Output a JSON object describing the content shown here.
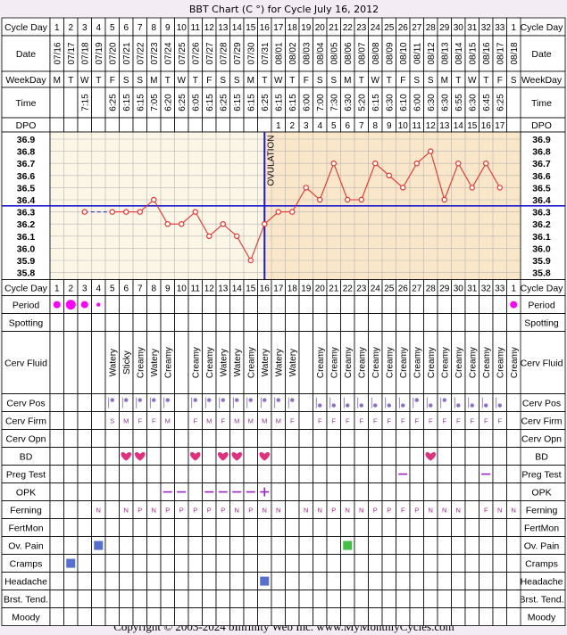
{
  "title": "BBT Chart (C °) for Cycle July 16, 2012",
  "footer": "Copyright © 2003-2024 bInfinity Web Inc.     www.MyMonthlyCycles.com",
  "labels": {
    "cycle_day": "Cycle Day",
    "date": "Date",
    "weekday": "WeekDay",
    "time": "Time",
    "dpo": "DPO",
    "ovulation": "OVULATION"
  },
  "colors": {
    "period": "#ff00ff",
    "curve": "#e8302f",
    "coverline": "#1a1acc",
    "preov_bg": "#fbf6e6",
    "postov_bg": "#fae6c8",
    "heart": "#e0307e",
    "opk": "#9922cc",
    "ferning": "#b0208a",
    "blue_square": "#5570d0",
    "green_square": "#44c044"
  },
  "chart_data": {
    "type": "line",
    "title": "BBT Chart (C °) for Cycle July 16, 2012",
    "ylim": [
      35.8,
      36.9
    ],
    "y_ticks": [
      "36.9",
      "36.8",
      "36.7",
      "36.6",
      "36.5",
      "36.4",
      "36.3",
      "36.2",
      "36.1",
      "36.0",
      "35.9",
      "35.8"
    ],
    "coverline": 36.35,
    "ovulation_day": 16,
    "cycle_days": [
      "1",
      "2",
      "3",
      "4",
      "5",
      "6",
      "7",
      "8",
      "9",
      "10",
      "11",
      "12",
      "13",
      "14",
      "15",
      "16",
      "17",
      "18",
      "19",
      "20",
      "21",
      "22",
      "23",
      "24",
      "25",
      "26",
      "27",
      "28",
      "29",
      "30",
      "31",
      "32",
      "33",
      "1"
    ],
    "dates": [
      "07/16",
      "07/17",
      "07/18",
      "07/19",
      "07/20",
      "07/21",
      "07/22",
      "07/23",
      "07/24",
      "07/25",
      "07/26",
      "07/27",
      "07/28",
      "07/29",
      "07/30",
      "07/31",
      "08/01",
      "08/02",
      "08/03",
      "08/04",
      "08/05",
      "08/06",
      "08/07",
      "08/08",
      "08/09",
      "08/10",
      "08/11",
      "08/12",
      "08/13",
      "08/14",
      "08/15",
      "08/16",
      "08/17",
      "08/18"
    ],
    "weekdays": [
      "M",
      "T",
      "W",
      "T",
      "F",
      "S",
      "S",
      "M",
      "T",
      "W",
      "T",
      "F",
      "S",
      "S",
      "M",
      "T",
      "W",
      "T",
      "F",
      "S",
      "S",
      "M",
      "T",
      "W",
      "T",
      "F",
      "S",
      "S",
      "M",
      "T",
      "W",
      "T",
      "F",
      "S"
    ],
    "times": [
      "",
      "",
      "7:15",
      "",
      "6:25",
      "6:15",
      "6:15",
      "7:05",
      "6:20",
      "6:25",
      "6:05",
      "6:15",
      "6:25",
      "6:15",
      "6:15",
      "6:25",
      "6:15",
      "6:15",
      "6:00",
      "7:00",
      "7:30",
      "6:30",
      "5:20",
      "6:15",
      "6:30",
      "6:10",
      "6:00",
      "6:30",
      "6:30",
      "6:55",
      "6:30",
      "6:45",
      "6:25",
      ""
    ],
    "dpo": [
      "",
      "",
      "",
      "",
      "",
      "",
      "",
      "",
      "",
      "",
      "",
      "",
      "",
      "",
      "",
      "",
      "1",
      "2",
      "3",
      "4",
      "5",
      "6",
      "7",
      "8",
      "9",
      "10",
      "11",
      "12",
      "13",
      "14",
      "15",
      "16",
      "17",
      ""
    ],
    "temps": [
      null,
      null,
      36.3,
      null,
      36.3,
      36.3,
      36.3,
      36.4,
      36.2,
      36.2,
      36.3,
      36.1,
      36.2,
      36.1,
      35.9,
      36.2,
      36.3,
      36.3,
      36.5,
      36.4,
      36.7,
      36.4,
      36.4,
      36.7,
      36.6,
      36.5,
      36.7,
      36.8,
      36.4,
      36.7,
      36.5,
      36.7,
      36.5,
      null
    ],
    "dashed_segments": [
      [
        3,
        5
      ]
    ]
  },
  "rows": [
    {
      "label": "Cycle Day",
      "type": "cycleday"
    },
    {
      "label": "Period",
      "type": "period",
      "values": {
        "1": "m",
        "2": "l",
        "3": "m",
        "4": "s",
        "34": "m"
      }
    },
    {
      "label": "Spotting",
      "type": "empty"
    },
    {
      "label": "Cerv Fluid",
      "type": "vtext",
      "values": {
        "5": "Watery",
        "6": "Sticky",
        "7": "Creamy",
        "8": "Watery",
        "9": "Creamy",
        "11": "Creamy",
        "12": "Creamy",
        "13": "Watery",
        "14": "Watery",
        "15": "Creamy",
        "16": "Watery",
        "17": "Watery",
        "18": "Watery",
        "20": "Creamy",
        "21": "Creamy",
        "22": "Creamy",
        "23": "Creamy",
        "24": "Creamy",
        "25": "Creamy",
        "26": "Creamy",
        "27": "Creamy",
        "28": "Creamy",
        "29": "Creamy",
        "30": "Creamy",
        "31": "Creamy",
        "32": "Creamy",
        "33": "Creamy",
        "34": "Creamy"
      }
    },
    {
      "label": "Cerv Pos",
      "type": "pos",
      "values": {
        "5": "h",
        "6": "h",
        "7": "h",
        "8": "h",
        "9": "h",
        "11": "h",
        "12": "h",
        "13": "h",
        "14": "h",
        "15": "h",
        "16": "h",
        "17": "h",
        "18": "h",
        "20": "l",
        "21": "l",
        "22": "l",
        "23": "l",
        "24": "l",
        "25": "l",
        "26": "l",
        "27": "h",
        "28": "l",
        "29": "h",
        "30": "l",
        "31": "l",
        "32": "l",
        "33": "l"
      }
    },
    {
      "label": "Cerv Firm",
      "type": "text",
      "values": {
        "5": "S",
        "6": "M",
        "7": "F",
        "8": "F",
        "9": "M",
        "11": "F",
        "12": "M",
        "13": "F",
        "14": "M",
        "15": "M",
        "16": "M",
        "17": "M",
        "18": "F",
        "20": "F",
        "21": "F",
        "22": "F",
        "23": "F",
        "24": "F",
        "25": "F",
        "26": "F",
        "27": "F",
        "28": "F",
        "29": "F",
        "30": "F",
        "31": "F",
        "32": "F",
        "33": "F"
      }
    },
    {
      "label": "Cerv Opn",
      "type": "empty"
    },
    {
      "label": "BD",
      "type": "heart",
      "values": {
        "6": "1",
        "7": "1",
        "11": "1",
        "13": "1",
        "14": "1",
        "16": "1",
        "28": "1"
      }
    },
    {
      "label": "Preg Test",
      "type": "dash",
      "values": {
        "26": "1",
        "32": "1"
      }
    },
    {
      "label": "OPK",
      "type": "opk",
      "values": {
        "9": "-",
        "10": "-",
        "12": "-",
        "13": "-",
        "14": "-",
        "15": "-",
        "16": "+"
      }
    },
    {
      "label": "Ferning",
      "type": "text",
      "values": {
        "4": "N",
        "6": "N",
        "7": "P",
        "8": "N",
        "9": "P",
        "10": "P",
        "11": "P",
        "12": "P",
        "13": "P",
        "14": "N",
        "15": "P",
        "16": "N",
        "17": "N",
        "19": "N",
        "20": "N",
        "21": "P",
        "22": "N",
        "23": "N",
        "24": "P",
        "25": "P",
        "26": "F",
        "27": "P",
        "28": "N",
        "29": "N",
        "30": "N",
        "32": "F",
        "33": "N",
        "34": "N"
      }
    },
    {
      "label": "FertMon",
      "type": "empty"
    },
    {
      "label": "Ov. Pain",
      "type": "square",
      "values": {
        "4": "blue_square",
        "22": "green_square"
      }
    },
    {
      "label": "Cramps",
      "type": "square",
      "values": {
        "2": "blue_square"
      }
    },
    {
      "label": "Headache",
      "type": "square",
      "values": {
        "16": "blue_square"
      }
    },
    {
      "label": "Brst. Tend.",
      "type": "empty"
    },
    {
      "label": "Moody",
      "type": "empty"
    }
  ]
}
